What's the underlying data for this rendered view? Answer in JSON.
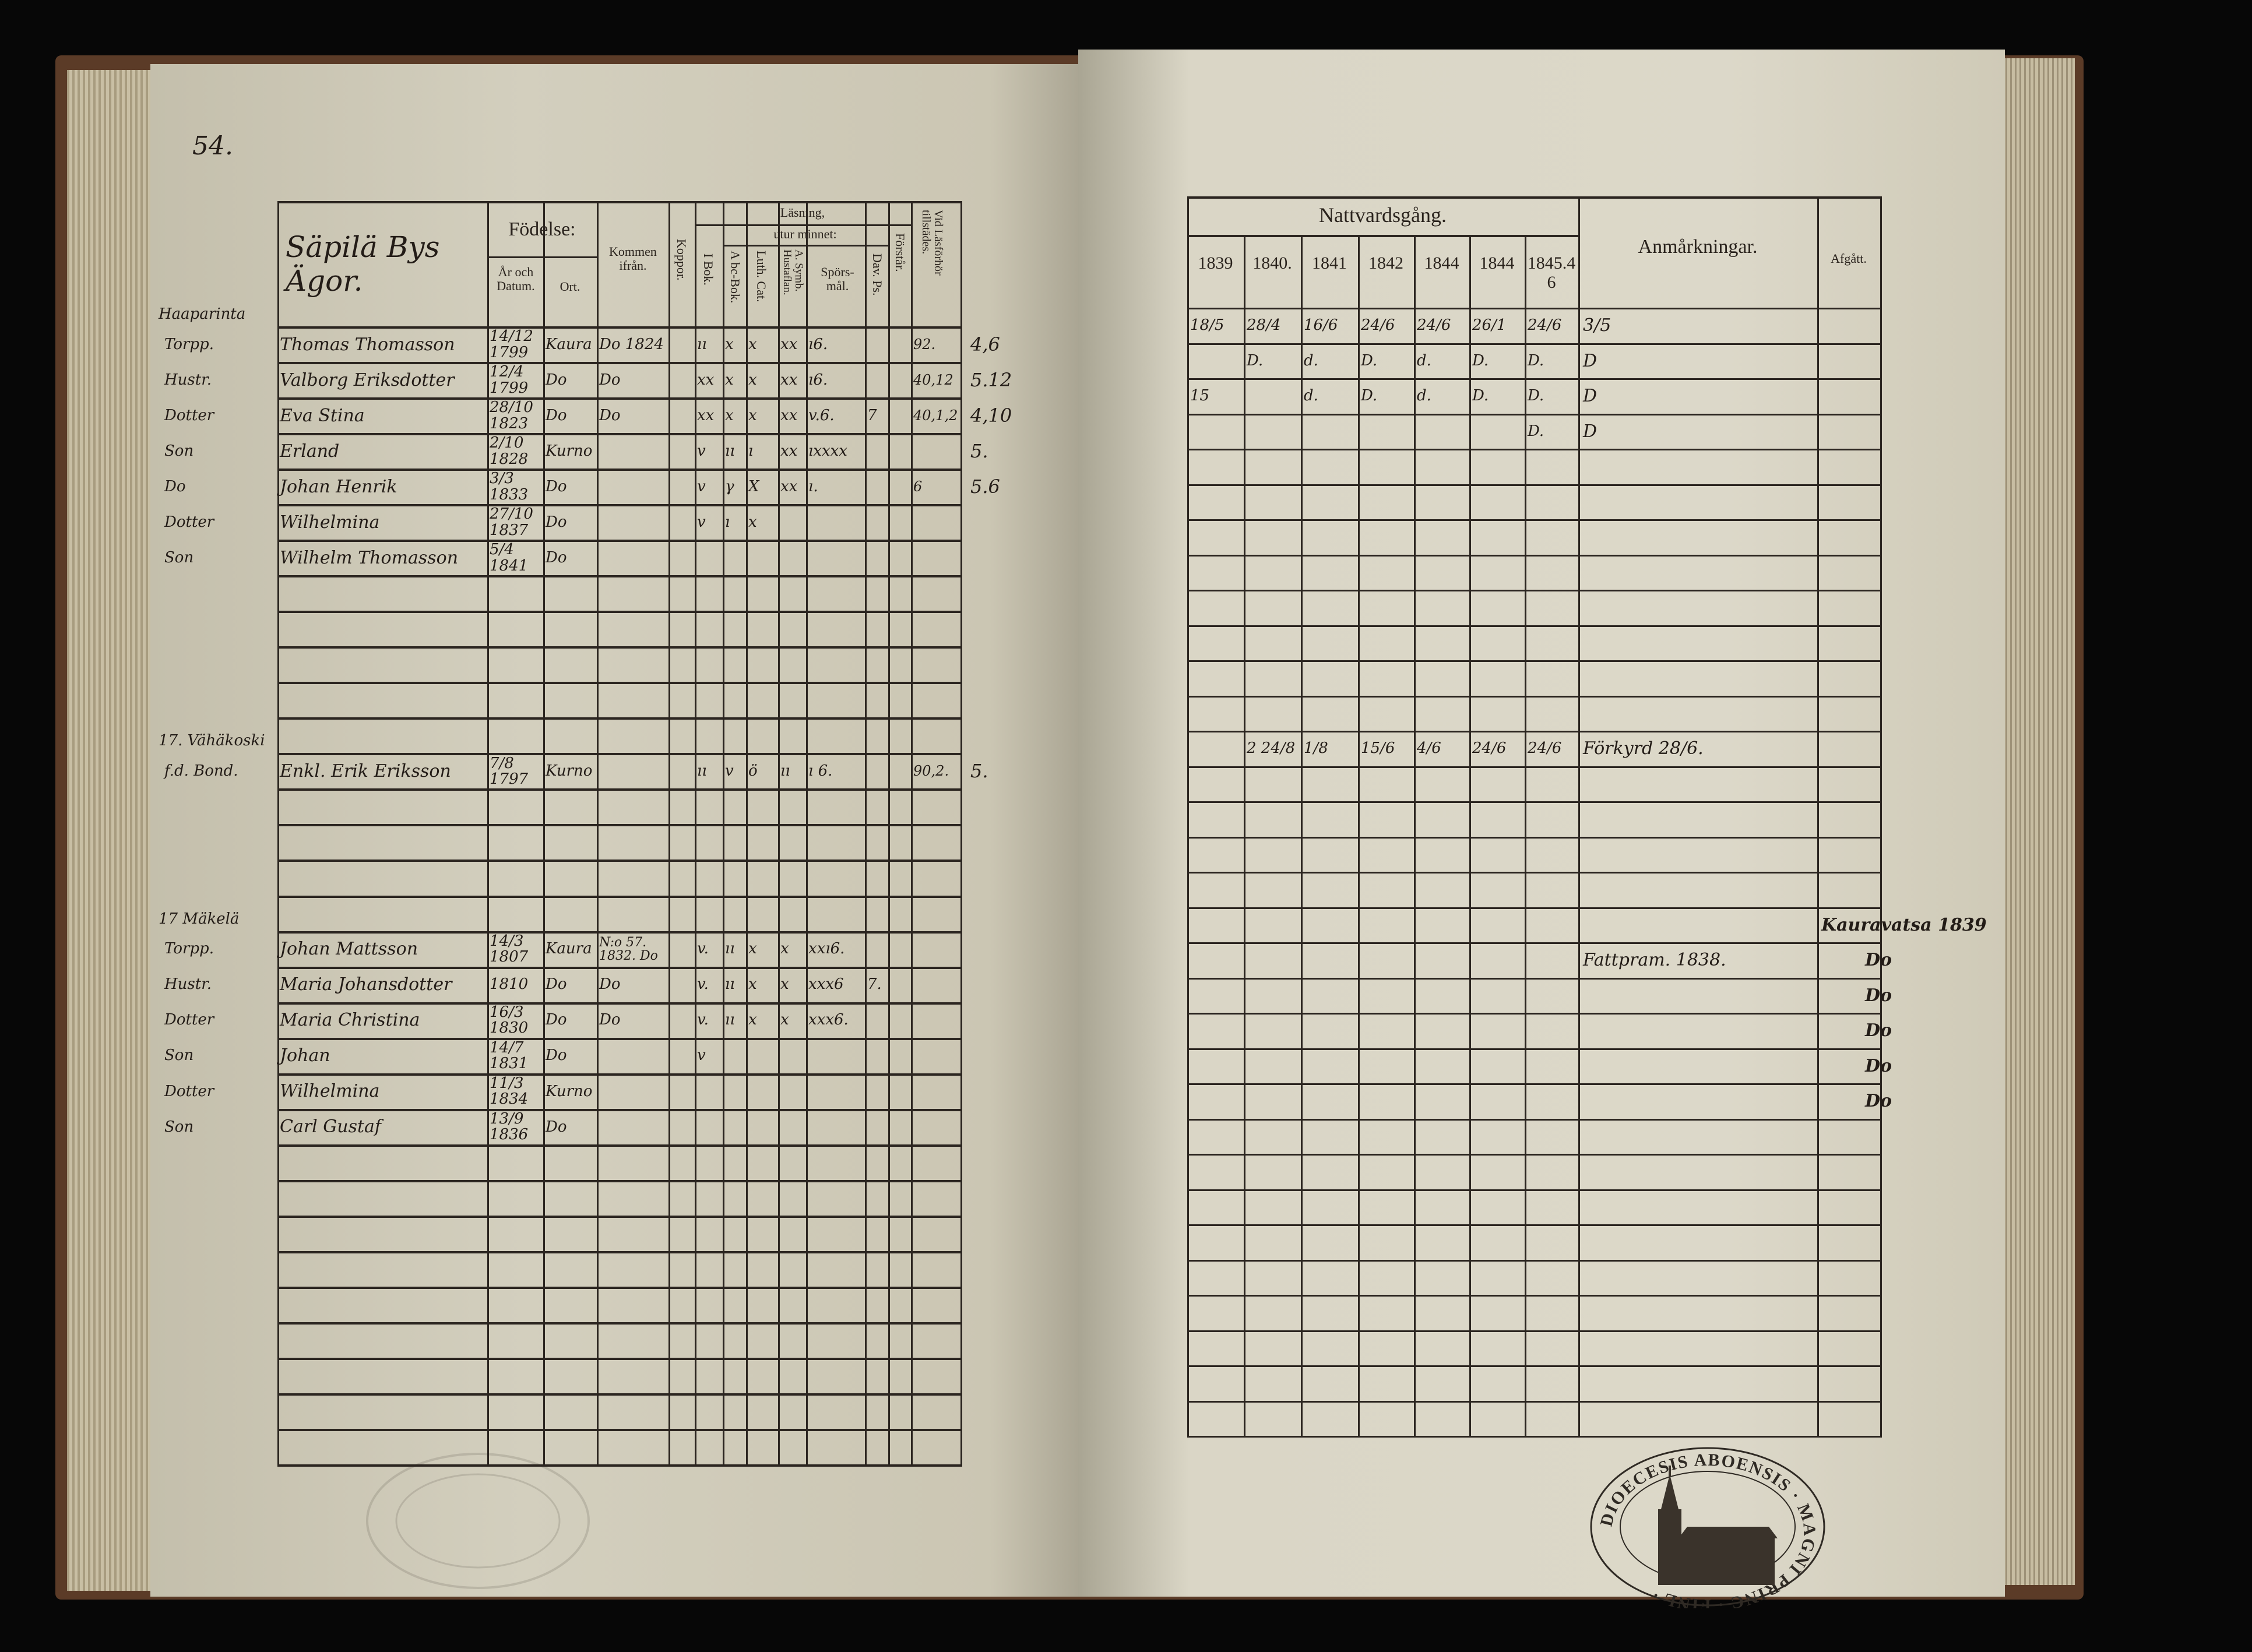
{
  "left_page": {
    "page_number": "54.",
    "header": {
      "heading_handwritten": "Säpilä Bys Ägor.",
      "fodelse": "Födelse:",
      "ar_och_datum": "År och Datum.",
      "ort": "Ort.",
      "kommen_ifran": "Kommen ifrån.",
      "koppor": "Koppor.",
      "lasning": "Läsning,",
      "utur_minnet": "utur minnet:",
      "i_bok": "I Bok.",
      "abc_bok": "A bc-Bok.",
      "luth_cat": "Luth. Cat.",
      "symb": "A. Symb. Hustaflan.",
      "sporsmal": "Spörs-mål.",
      "dav_ps": "Dav. Ps.",
      "forstar": "Förstår.",
      "lasforhor": "Vid Läsförhör tillstädes."
    },
    "rows": [
      {
        "margin_place": "Haaparinta",
        "role": "Torpp.",
        "name": "Thomas Thomasson",
        "date": "14/12 1799",
        "ort": "Kaura",
        "from": "Do 1824",
        "i_bok": "ıı",
        "abc": "x",
        "luth": "x",
        "symb": "xx",
        "spors": "ı6.",
        "dav": "",
        "forstar": "",
        "las": "92.",
        "extra": "4,6"
      },
      {
        "role": "Hustr.",
        "name": "Valborg Eriksdotter",
        "date": "12/4 1799",
        "ort": "Do",
        "from": "Do",
        "i_bok": "xx",
        "abc": "x",
        "luth": "x",
        "symb": "xx",
        "spors": "ı6.",
        "dav": "",
        "forstar": "",
        "las": "40,12",
        "extra": "5.12"
      },
      {
        "role": "Dotter",
        "name": "Eva Stina",
        "date": "28/10 1823",
        "ort": "Do",
        "from": "Do",
        "i_bok": "xx",
        "abc": "x",
        "luth": "x",
        "symb": "xx",
        "spors": "v.6.",
        "dav": "7",
        "forstar": "",
        "las": "40,1,2",
        "extra": "4,10"
      },
      {
        "role": "Son",
        "name": "Erland",
        "date": "2/10 1828",
        "ort": "Kurno",
        "from": "",
        "i_bok": "v",
        "abc": "ıı",
        "luth": "ı",
        "symb": "xx",
        "spors": "ıxxxx",
        "dav": "",
        "forstar": "",
        "las": "",
        "extra": "5."
      },
      {
        "role": "Do",
        "name": "Johan Henrik",
        "date": "3/3 1833",
        "ort": "Do",
        "from": "",
        "i_bok": "v",
        "abc": "γ",
        "luth": "X",
        "symb": "xx",
        "spors": "ı.",
        "dav": "",
        "forstar": "",
        "las": "6",
        "extra": "5.6"
      },
      {
        "role": "Dotter",
        "name": "Wilhelmina",
        "date": "27/10 1837",
        "ort": "Do",
        "from": "",
        "i_bok": "v",
        "abc": "ı",
        "luth": "x",
        "symb": "",
        "spors": "",
        "dav": "",
        "forstar": "",
        "las": "",
        "extra": ""
      },
      {
        "role": "Son",
        "name": "Wilhelm Thomasson",
        "date": "5/4 1841",
        "ort": "Do",
        "from": "",
        "i_bok": "",
        "abc": "",
        "luth": "",
        "symb": "",
        "spors": "",
        "dav": "",
        "forstar": "",
        "las": "",
        "extra": ""
      },
      null,
      null,
      null,
      null,
      null,
      {
        "margin_place": "17. Vähäkoski",
        "role": "f.d. Bond.",
        "name": "Enkl. Erik Eriksson",
        "date": "7/8 1797",
        "ort": "Kurno",
        "from": "",
        "i_bok": "ıı",
        "abc": "v",
        "luth": "ö",
        "symb": "ıı",
        "spors": "ı 6.",
        "dav": "",
        "forstar": "",
        "las": "90,2.",
        "extra": "5."
      },
      null,
      null,
      null,
      null,
      {
        "margin_place": "17 Mäkelä",
        "role": "Torpp.",
        "name": "Johan Mattsson",
        "date": "14/3 1807",
        "ort": "Kaura",
        "from": "N:o 57. 1832. Do",
        "i_bok": "v.",
        "abc": "ıı",
        "luth": "x",
        "symb": "x",
        "spors": "xxı6.",
        "dav": "",
        "forstar": "",
        "las": "",
        "extra": ""
      },
      {
        "role": "Hustr.",
        "name": "Maria Johansdotter",
        "date": "1810",
        "ort": "Do",
        "from": "Do",
        "i_bok": "v.",
        "abc": "ıı",
        "luth": "x",
        "symb": "x",
        "spors": "xxx6",
        "dav": "7.",
        "forstar": "",
        "las": "",
        "extra": ""
      },
      {
        "role": "Dotter",
        "name": "Maria Christina",
        "date": "16/3 1830",
        "ort": "Do",
        "from": "Do",
        "i_bok": "v.",
        "abc": "ıı",
        "luth": "x",
        "symb": "x",
        "spors": "xxx6.",
        "dav": "",
        "forstar": "",
        "las": "",
        "extra": ""
      },
      {
        "role": "Son",
        "name": "Johan",
        "date": "14/7 1831",
        "ort": "Do",
        "from": "",
        "i_bok": "v",
        "abc": "",
        "luth": "",
        "symb": "",
        "spors": "",
        "dav": "",
        "forstar": "",
        "las": "",
        "extra": ""
      },
      {
        "role": "Dotter",
        "name": "Wilhelmina",
        "date": "11/3 1834",
        "ort": "Kurno",
        "from": "",
        "i_bok": "",
        "abc": "",
        "luth": "",
        "symb": "",
        "spors": "",
        "dav": "",
        "forstar": "",
        "las": "",
        "extra": ""
      },
      {
        "role": "Son",
        "name": "Carl Gustaf",
        "date": "13/9 1836",
        "ort": "Do",
        "from": "",
        "i_bok": "",
        "abc": "",
        "luth": "",
        "symb": "",
        "spors": "",
        "dav": "",
        "forstar": "",
        "las": "",
        "extra": ""
      }
    ]
  },
  "right_page": {
    "header": {
      "nattvardsgang": "Nattvardsgång.",
      "years": [
        "1839",
        "1840.",
        "1841",
        "1842",
        "1844",
        "1844",
        "1845.46"
      ],
      "anmarkningar": "Anmårkningar.",
      "afgatt": "Afgått."
    },
    "rows": [
      {
        "c": [
          "18/5",
          "28/4",
          "16/6",
          "24/6",
          "24/6",
          "26/1",
          "24/6"
        ],
        "remark": "3/5",
        "afgatt": ""
      },
      {
        "c": [
          "",
          "D.",
          "d.",
          "D.",
          "d.",
          "D.",
          "D."
        ],
        "remark": "D",
        "afgatt": ""
      },
      {
        "c": [
          "15",
          "",
          "d.",
          "D.",
          "d.",
          "D.",
          "D."
        ],
        "remark": "D",
        "afgatt": ""
      },
      {
        "c": [
          "",
          "",
          "",
          "",
          "",
          "",
          "D."
        ],
        "remark": "D",
        "afgatt": ""
      },
      null,
      null,
      null,
      null,
      null,
      null,
      null,
      null,
      {
        "c": [
          "",
          "2 24/8",
          "1/8",
          "15/6",
          "4/6",
          "24/6",
          "24/6"
        ],
        "remark": "Förkyrd 28/6.",
        "afgatt": ""
      },
      null,
      null,
      null,
      null,
      {
        "c": [
          "",
          "",
          "",
          "",
          "",
          "",
          ""
        ],
        "remark": "",
        "afgatt": "Kauravatsa 1839"
      },
      {
        "c": [
          "",
          "",
          "",
          "",
          "",
          "",
          ""
        ],
        "remark": "Fattpram. 1838.",
        "afgatt": "Do"
      },
      {
        "c": [
          "",
          "",
          "",
          "",
          "",
          "",
          ""
        ],
        "remark": "",
        "afgatt": "Do"
      },
      {
        "c": [
          "",
          "",
          "",
          "",
          "",
          "",
          ""
        ],
        "remark": "",
        "afgatt": "Do"
      },
      {
        "c": [
          "",
          "",
          "",
          "",
          "",
          "",
          ""
        ],
        "remark": "",
        "afgatt": "Do"
      },
      {
        "c": [
          "",
          "",
          "",
          "",
          "",
          "",
          ""
        ],
        "remark": "",
        "afgatt": "Do"
      }
    ]
  },
  "stamp": {
    "text": "DIOECESIS ABOENSIS · MAGNI PRINC · FINL ·",
    "icon": "church-seal"
  },
  "colors": {
    "ink": "#2a231d",
    "paper": "#d6d2c2",
    "cover": "#5b3b27",
    "background": "#070707"
  }
}
